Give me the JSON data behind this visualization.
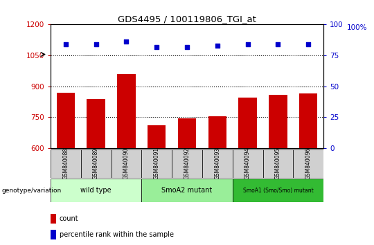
{
  "title": "GDS4495 / 100119806_TGI_at",
  "samples": [
    "GSM840088",
    "GSM840089",
    "GSM840090",
    "GSM840091",
    "GSM840092",
    "GSM840093",
    "GSM840094",
    "GSM840095",
    "GSM840096"
  ],
  "bar_values": [
    870,
    840,
    960,
    710,
    745,
    755,
    845,
    860,
    865
  ],
  "dot_values": [
    84,
    84,
    86,
    82,
    82,
    83,
    84,
    84,
    84
  ],
  "bar_color": "#cc0000",
  "dot_color": "#0000cc",
  "ylim_left": [
    600,
    1200
  ],
  "ylim_right": [
    0,
    100
  ],
  "yticks_left": [
    600,
    750,
    900,
    1050,
    1200
  ],
  "yticks_right": [
    0,
    25,
    50,
    75,
    100
  ],
  "grid_values": [
    750,
    900,
    1050
  ],
  "groups": [
    {
      "label": "wild type",
      "samples": [
        0,
        1,
        2
      ],
      "color": "#ccffcc"
    },
    {
      "label": "SmoA2 mutant",
      "samples": [
        3,
        4,
        5
      ],
      "color": "#99ee99"
    },
    {
      "label": "SmoA1 (Smo/Smo) mutant",
      "samples": [
        6,
        7,
        8
      ],
      "color": "#33bb33"
    }
  ],
  "legend_count_label": "count",
  "legend_percentile_label": "percentile rank within the sample",
  "genotype_label": "genotype/variation"
}
